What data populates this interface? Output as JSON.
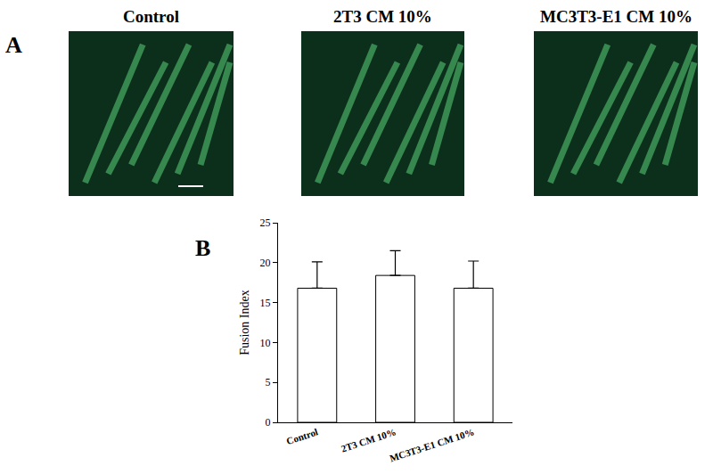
{
  "figure": {
    "panel_labels": [
      "A",
      "B"
    ],
    "image_titles": [
      "Control",
      "2T3 CM 10%",
      "MC3T3-E1 CM 10%"
    ]
  },
  "chart_data": {
    "type": "bar",
    "categories": [
      "Control",
      "2T3 CM 10%",
      "MC3T3-E1 CM 10%"
    ],
    "values": [
      16.8,
      18.4,
      16.8
    ],
    "errors": [
      3.3,
      3.1,
      3.4
    ],
    "color": "#ffffff",
    "y_label": "Fusion Index",
    "ylim": [
      0,
      25
    ],
    "yticks": [
      0,
      5,
      10,
      15,
      20,
      25
    ],
    "grid": false
  }
}
